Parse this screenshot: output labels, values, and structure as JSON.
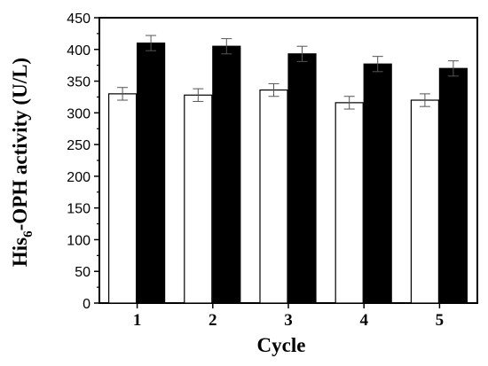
{
  "chart_data": {
    "type": "bar",
    "xlabel": "Cycle",
    "ylabel": {
      "prefix": "His",
      "subscript": "6",
      "suffix": "-OPH activity (U/L)"
    },
    "ylim": [
      0,
      450
    ],
    "yticks": [
      0,
      50,
      100,
      150,
      200,
      250,
      300,
      350,
      400,
      450
    ],
    "categories": [
      "1",
      "2",
      "3",
      "4",
      "5"
    ],
    "series": [
      {
        "fill": "#ffffff",
        "values": [
          330,
          328,
          336,
          316,
          320
        ],
        "errors": [
          10,
          10,
          10,
          10,
          10
        ]
      },
      {
        "fill": "#000000",
        "values": [
          410,
          405,
          393,
          377,
          370
        ],
        "errors": [
          12,
          12,
          12,
          12,
          12
        ]
      }
    ],
    "grid": false,
    "legend": "none"
  }
}
